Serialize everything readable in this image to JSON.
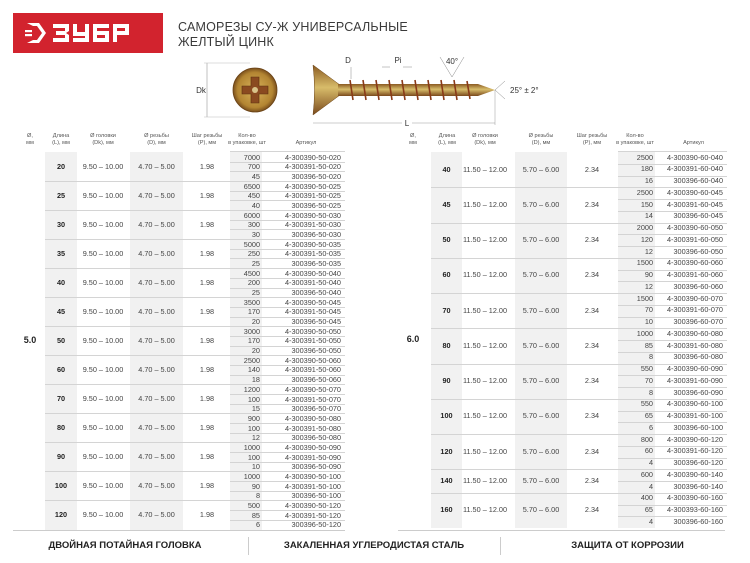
{
  "brand": {
    "logo_text": "ЗУБР",
    "color": "#d2232e"
  },
  "title": {
    "line1": "САМОРЕЗЫ СУ-Ж УНИВЕРСАЛЬНЫЕ",
    "line2": "ЖЕЛТЫЙ ЦИНК"
  },
  "diagram": {
    "dk": "Dk",
    "d": "D",
    "pitch": "Pi",
    "angle": "40°",
    "tip_angle": "25° ± 2°",
    "length": "L"
  },
  "headers": {
    "dia": [
      "Ø,",
      "мм"
    ],
    "length": [
      "Длина",
      "(L), мм"
    ],
    "head": [
      "Ø головки",
      "(Dk), мм"
    ],
    "thread": [
      "Ø резьбы",
      "(D), мм"
    ],
    "pitch": [
      "Шаг резьбы",
      "(P), мм"
    ],
    "qty": [
      "Кол-во",
      "в упаковке, шт"
    ],
    "article": [
      "Артикул"
    ]
  },
  "tables": [
    {
      "diameter": "5.0",
      "groups": [
        {
          "length": "20",
          "head": "9.50 – 10.00",
          "thread": "4.70 – 5.00",
          "pitch": "1.98",
          "packs": [
            {
              "qty": "7000",
              "article": "4-300390-50-020"
            },
            {
              "qty": "700",
              "article": "4-300391-50-020"
            },
            {
              "qty": "45",
              "article": "300396-50-020"
            }
          ]
        },
        {
          "length": "25",
          "head": "9.50 – 10.00",
          "thread": "4.70 – 5.00",
          "pitch": "1.98",
          "packs": [
            {
              "qty": "6500",
              "article": "4-300390-50-025"
            },
            {
              "qty": "450",
              "article": "4-300391-50-025"
            },
            {
              "qty": "40",
              "article": "300396-50-025"
            }
          ]
        },
        {
          "length": "30",
          "head": "9.50 – 10.00",
          "thread": "4.70 – 5.00",
          "pitch": "1.98",
          "packs": [
            {
              "qty": "6000",
              "article": "4-300390-50-030"
            },
            {
              "qty": "300",
              "article": "4-300391-50-030"
            },
            {
              "qty": "30",
              "article": "300396-50-030"
            }
          ]
        },
        {
          "length": "35",
          "head": "9.50 – 10.00",
          "thread": "4.70 – 5.00",
          "pitch": "1.98",
          "packs": [
            {
              "qty": "5000",
              "article": "4-300390-50-035"
            },
            {
              "qty": "250",
              "article": "4-300391-50-035"
            },
            {
              "qty": "25",
              "article": "300396-50-035"
            }
          ]
        },
        {
          "length": "40",
          "head": "9.50 – 10.00",
          "thread": "4.70 – 5.00",
          "pitch": "1.98",
          "packs": [
            {
              "qty": "4500",
              "article": "4-300390-50-040"
            },
            {
              "qty": "200",
              "article": "4-300391-50-040"
            },
            {
              "qty": "25",
              "article": "300396-50-040"
            }
          ]
        },
        {
          "length": "45",
          "head": "9.50 – 10.00",
          "thread": "4.70 – 5.00",
          "pitch": "1.98",
          "packs": [
            {
              "qty": "3500",
              "article": "4-300390-50-045"
            },
            {
              "qty": "170",
              "article": "4-300391-50-045"
            },
            {
              "qty": "20",
              "article": "300396-50-045"
            }
          ]
        },
        {
          "length": "50",
          "head": "9.50 – 10.00",
          "thread": "4.70 – 5.00",
          "pitch": "1.98",
          "packs": [
            {
              "qty": "3000",
              "article": "4-300390-50-050"
            },
            {
              "qty": "170",
              "article": "4-300391-50-050"
            },
            {
              "qty": "20",
              "article": "300396-50-050"
            }
          ]
        },
        {
          "length": "60",
          "head": "9.50 – 10.00",
          "thread": "4.70 – 5.00",
          "pitch": "1.98",
          "packs": [
            {
              "qty": "2500",
              "article": "4-300390-50-060"
            },
            {
              "qty": "140",
              "article": "4-300391-50-060"
            },
            {
              "qty": "18",
              "article": "300396-50-060"
            }
          ]
        },
        {
          "length": "70",
          "head": "9.50 – 10.00",
          "thread": "4.70 – 5.00",
          "pitch": "1.98",
          "packs": [
            {
              "qty": "1200",
              "article": "4-300390-50-070"
            },
            {
              "qty": "100",
              "article": "4-300391-50-070"
            },
            {
              "qty": "15",
              "article": "300396-50-070"
            }
          ]
        },
        {
          "length": "80",
          "head": "9.50 – 10.00",
          "thread": "4.70 – 5.00",
          "pitch": "1.98",
          "packs": [
            {
              "qty": "900",
              "article": "4-300390-50-080"
            },
            {
              "qty": "100",
              "article": "4-300391-50-080"
            },
            {
              "qty": "12",
              "article": "300396-50-080"
            }
          ]
        },
        {
          "length": "90",
          "head": "9.50 – 10.00",
          "thread": "4.70 – 5.00",
          "pitch": "1.98",
          "packs": [
            {
              "qty": "1000",
              "article": "4-300390-50-090"
            },
            {
              "qty": "100",
              "article": "4-300391-50-090"
            },
            {
              "qty": "10",
              "article": "300396-50-090"
            }
          ]
        },
        {
          "length": "100",
          "head": "9.50 – 10.00",
          "thread": "4.70 – 5.00",
          "pitch": "1.98",
          "packs": [
            {
              "qty": "1000",
              "article": "4-300390-50-100"
            },
            {
              "qty": "90",
              "article": "4-300391-50-100"
            },
            {
              "qty": "8",
              "article": "300396-50-100"
            }
          ]
        },
        {
          "length": "120",
          "head": "9.50 – 10.00",
          "thread": "4.70 – 5.00",
          "pitch": "1.98",
          "packs": [
            {
              "qty": "500",
              "article": "4-300390-50-120"
            },
            {
              "qty": "85",
              "article": "4-300391-50-120"
            },
            {
              "qty": "6",
              "article": "300396-50-120"
            }
          ]
        }
      ]
    },
    {
      "diameter": "6.0",
      "groups": [
        {
          "length": "40",
          "head": "11.50 – 12.00",
          "thread": "5.70 – 6.00",
          "pitch": "2.34",
          "packs": [
            {
              "qty": "2500",
              "article": "4-300390-60-040"
            },
            {
              "qty": "180",
              "article": "4-300391-60-040"
            },
            {
              "qty": "16",
              "article": "300396-60-040"
            }
          ]
        },
        {
          "length": "45",
          "head": "11.50 – 12.00",
          "thread": "5.70 – 6.00",
          "pitch": "2.34",
          "packs": [
            {
              "qty": "2500",
              "article": "4-300390-60-045"
            },
            {
              "qty": "150",
              "article": "4-300391-60-045"
            },
            {
              "qty": "14",
              "article": "300396-60-045"
            }
          ]
        },
        {
          "length": "50",
          "head": "11.50 – 12.00",
          "thread": "5.70 – 6.00",
          "pitch": "2.34",
          "packs": [
            {
              "qty": "2000",
              "article": "4-300390-60-050"
            },
            {
              "qty": "120",
              "article": "4-300391-60-050"
            },
            {
              "qty": "12",
              "article": "300396-60-050"
            }
          ]
        },
        {
          "length": "60",
          "head": "11.50 – 12.00",
          "thread": "5.70 – 6.00",
          "pitch": "2.34",
          "packs": [
            {
              "qty": "1500",
              "article": "4-300390-60-060"
            },
            {
              "qty": "90",
              "article": "4-300391-60-060"
            },
            {
              "qty": "12",
              "article": "300396-60-060"
            }
          ]
        },
        {
          "length": "70",
          "head": "11.50 – 12.00",
          "thread": "5.70 – 6.00",
          "pitch": "2.34",
          "packs": [
            {
              "qty": "1500",
              "article": "4-300390-60-070"
            },
            {
              "qty": "70",
              "article": "4-300391-60-070"
            },
            {
              "qty": "10",
              "article": "300396-60-070"
            }
          ]
        },
        {
          "length": "80",
          "head": "11.50 – 12.00",
          "thread": "5.70 – 6.00",
          "pitch": "2.34",
          "packs": [
            {
              "qty": "1000",
              "article": "4-300390-60-080"
            },
            {
              "qty": "85",
              "article": "4-300391-60-080"
            },
            {
              "qty": "8",
              "article": "300396-60-080"
            }
          ]
        },
        {
          "length": "90",
          "head": "11.50 – 12.00",
          "thread": "5.70 – 6.00",
          "pitch": "2.34",
          "packs": [
            {
              "qty": "550",
              "article": "4-300390-60-090"
            },
            {
              "qty": "70",
              "article": "4-300391-60-090"
            },
            {
              "qty": "8",
              "article": "300396-60-090"
            }
          ]
        },
        {
          "length": "100",
          "head": "11.50 – 12.00",
          "thread": "5.70 – 6.00",
          "pitch": "2.34",
          "packs": [
            {
              "qty": "550",
              "article": "4-300390-60-100"
            },
            {
              "qty": "65",
              "article": "4-300391-60-100"
            },
            {
              "qty": "6",
              "article": "300396-60-100"
            }
          ]
        },
        {
          "length": "120",
          "head": "11.50 – 12.00",
          "thread": "5.70 – 6.00",
          "pitch": "2.34",
          "packs": [
            {
              "qty": "800",
              "article": "4-300390-60-120"
            },
            {
              "qty": "60",
              "article": "4-300391-60-120"
            },
            {
              "qty": "4",
              "article": "300396-60-120"
            }
          ]
        },
        {
          "length": "140",
          "head": "11.50 – 12.00",
          "thread": "5.70 – 6.00",
          "pitch": "2.34",
          "packs": [
            {
              "qty": "600",
              "article": "4-300390-60-140"
            },
            {
              "qty": "4",
              "article": "300396-60-140"
            }
          ]
        },
        {
          "length": "160",
          "head": "11.50 – 12.00",
          "thread": "5.70 – 6.00",
          "pitch": "2.34",
          "packs": [
            {
              "qty": "400",
              "article": "4-300390-60-160"
            },
            {
              "qty": "65",
              "article": "4-300393-60-160"
            },
            {
              "qty": "4",
              "article": "300396-60-160"
            }
          ]
        }
      ]
    }
  ],
  "footer": [
    "ДВОЙНАЯ ПОТАЙНАЯ ГОЛОВКА",
    "ЗАКАЛЕННАЯ УГЛЕРОДИСТАЯ СТАЛЬ",
    "ЗАЩИТА ОТ КОРРОЗИИ"
  ]
}
